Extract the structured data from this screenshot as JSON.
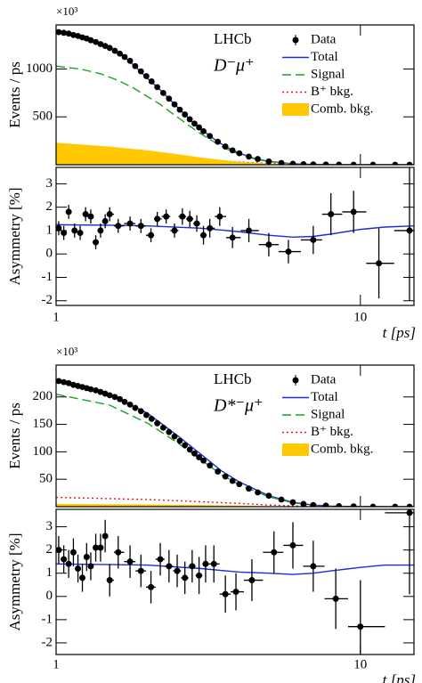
{
  "chart_data": [
    {
      "type": "line",
      "log_x": true,
      "ylabel": "Events / ps",
      "multiplier": "×10³",
      "experiment": "LHCb",
      "decay": "D⁻μ⁺",
      "legend": "upper right",
      "xlim": [
        1,
        15
      ],
      "xticks": [
        1,
        10
      ],
      "ylim": [
        0,
        1460
      ],
      "yticks": [
        500,
        1000
      ],
      "series": [
        {
          "name": "Data",
          "style": "points",
          "color": "#000000",
          "x": [
            1.02,
            1.06,
            1.1,
            1.14,
            1.18,
            1.22,
            1.26,
            1.3,
            1.35,
            1.4,
            1.45,
            1.5,
            1.56,
            1.62,
            1.68,
            1.75,
            1.82,
            1.9,
            1.98,
            2.06,
            2.15,
            2.25,
            2.35,
            2.45,
            2.55,
            2.65,
            2.75,
            2.85,
            2.95,
            3.05,
            3.2,
            3.4,
            3.6,
            3.8,
            4.0,
            4.3,
            4.6,
            5.0,
            5.5,
            6.0,
            6.5,
            7.0,
            7.7,
            8.5,
            9.5,
            11,
            13,
            14.5
          ],
          "values": [
            1385,
            1378,
            1370,
            1355,
            1345,
            1330,
            1318,
            1300,
            1282,
            1260,
            1240,
            1220,
            1190,
            1160,
            1125,
            1085,
            1030,
            975,
            925,
            870,
            810,
            750,
            690,
            630,
            575,
            525,
            475,
            430,
            390,
            350,
            300,
            240,
            190,
            150,
            120,
            85,
            60,
            35,
            18,
            10,
            6,
            3,
            2,
            1,
            0,
            0,
            0,
            0
          ]
        },
        {
          "name": "Total",
          "style": "solid",
          "color": "#1f2bd6",
          "x": [
            1,
            1.1,
            1.2,
            1.3,
            1.4,
            1.5,
            1.6,
            1.7,
            1.8,
            1.9,
            2,
            2.2,
            2.4,
            2.6,
            2.8,
            3,
            3.3,
            3.6,
            4,
            4.5,
            5,
            6,
            7,
            8,
            10,
            12,
            15
          ],
          "values": [
            1390,
            1370,
            1340,
            1300,
            1260,
            1220,
            1170,
            1110,
            1040,
            970,
            900,
            780,
            660,
            550,
            450,
            370,
            270,
            190,
            120,
            65,
            35,
            10,
            3,
            1,
            0,
            0,
            0
          ]
        },
        {
          "name": "Signal",
          "style": "dashed",
          "color": "#21a121",
          "x": [
            1,
            1.2,
            1.4,
            1.6,
            1.8,
            2,
            2.2,
            2.4,
            2.6,
            2.8,
            3,
            3.3,
            3.6,
            4,
            4.5,
            5,
            6,
            7,
            8,
            10,
            12,
            15
          ],
          "values": [
            1030,
            1000,
            950,
            880,
            800,
            710,
            630,
            540,
            460,
            385,
            320,
            240,
            170,
            110,
            60,
            32,
            9,
            3,
            1,
            0,
            0,
            0
          ]
        },
        {
          "name": "B⁺ bkg.",
          "style": "dotted",
          "color": "#e8161a",
          "x": [
            1,
            1.5,
            2,
            2.5,
            3,
            3.5,
            4,
            5,
            6,
            7,
            8,
            15
          ],
          "values": [
            125,
            110,
            95,
            75,
            55,
            40,
            28,
            12,
            5,
            2,
            0,
            0
          ]
        },
        {
          "name": "Comb. bkg.",
          "style": "band",
          "color": "#ffc800",
          "x": [
            1,
            1.5,
            2,
            2.5,
            3,
            3.5,
            4,
            5,
            6,
            7,
            8,
            15
          ],
          "values": [
            230,
            190,
            150,
            110,
            75,
            50,
            30,
            12,
            4,
            1,
            0,
            0
          ]
        }
      ]
    },
    {
      "type": "line",
      "log_x": true,
      "ylabel": "Asymmetry [%]",
      "xlabel": "t [ps]",
      "xlim": [
        1,
        15
      ],
      "xticks": [
        1,
        10
      ],
      "ylim": [
        -2.2,
        3.7
      ],
      "yticks": [
        -2,
        -1,
        0,
        1,
        2,
        3
      ],
      "series": [
        {
          "style": "points",
          "color": "#000000",
          "x": [
            1.02,
            1.06,
            1.1,
            1.15,
            1.2,
            1.25,
            1.3,
            1.35,
            1.4,
            1.45,
            1.5,
            1.6,
            1.75,
            1.9,
            2.05,
            2.15,
            2.3,
            2.45,
            2.6,
            2.75,
            2.9,
            3.05,
            3.2,
            3.45,
            3.8,
            4.3,
            5.0,
            5.8,
            7.0,
            8.0,
            9.5,
            11.5,
            14.5
          ],
          "values": [
            1.1,
            0.9,
            1.8,
            1.0,
            0.9,
            1.7,
            1.6,
            0.5,
            1.0,
            1.4,
            1.7,
            1.2,
            1.3,
            1.2,
            0.8,
            1.5,
            1.6,
            1.0,
            1.6,
            1.5,
            1.3,
            0.8,
            1.1,
            1.6,
            0.7,
            1.0,
            0.4,
            0.1,
            0.6,
            1.7,
            1.8,
            -0.4,
            1.0
          ],
          "errors": [
            0.3,
            0.3,
            0.3,
            0.3,
            0.3,
            0.3,
            0.3,
            0.3,
            0.3,
            0.3,
            0.3,
            0.3,
            0.3,
            0.3,
            0.3,
            0.3,
            0.3,
            0.3,
            0.35,
            0.35,
            0.35,
            0.4,
            0.4,
            0.4,
            0.45,
            0.5,
            0.5,
            0.5,
            0.6,
            0.9,
            0.9,
            1.5,
            3.0
          ]
        },
        {
          "style": "solid",
          "color": "#1f2bd6",
          "x": [
            1,
            1.5,
            2,
            3,
            4,
            5,
            6,
            7,
            8,
            10,
            12,
            15
          ],
          "values": [
            1.25,
            1.23,
            1.2,
            1.1,
            0.95,
            0.8,
            0.72,
            0.75,
            0.85,
            1.05,
            1.15,
            1.2
          ]
        }
      ]
    },
    {
      "type": "line",
      "log_x": true,
      "ylabel": "Events / ps",
      "multiplier": "×10³",
      "experiment": "LHCb",
      "decay": "D*⁻μ⁺",
      "legend": "upper right",
      "xlim": [
        1,
        15
      ],
      "xticks": [
        1,
        10
      ],
      "ylim": [
        0,
        258
      ],
      "yticks": [
        50,
        100,
        150,
        200
      ],
      "series": [
        {
          "name": "Data",
          "style": "points",
          "color": "#000000",
          "x": [
            1.02,
            1.06,
            1.1,
            1.14,
            1.18,
            1.22,
            1.26,
            1.3,
            1.35,
            1.4,
            1.45,
            1.5,
            1.56,
            1.62,
            1.68,
            1.75,
            1.82,
            1.9,
            1.98,
            2.06,
            2.15,
            2.25,
            2.35,
            2.45,
            2.55,
            2.65,
            2.75,
            2.85,
            2.95,
            3.05,
            3.2,
            3.4,
            3.6,
            3.8,
            4.0,
            4.3,
            4.6,
            5.0,
            5.5,
            6.0,
            6.5,
            7.0,
            7.7,
            8.5,
            9.5,
            11,
            13,
            14.5
          ],
          "values": [
            229,
            227,
            225,
            222,
            220,
            218,
            216,
            214,
            212,
            209,
            206,
            203,
            200,
            196,
            191,
            186,
            180,
            174,
            167,
            160,
            152,
            144,
            136,
            128,
            120,
            112,
            104,
            97,
            90,
            84,
            75,
            64,
            55,
            47,
            41,
            33,
            26,
            20,
            13,
            8,
            5,
            3,
            2,
            1,
            0.5,
            0,
            0,
            0
          ]
        },
        {
          "name": "Total",
          "style": "solid",
          "color": "#1f2bd6",
          "x": [
            1,
            1.5,
            2,
            2.5,
            3,
            3.5,
            4,
            5,
            6,
            7,
            8,
            10,
            15
          ],
          "values": [
            228,
            205,
            170,
            130,
            95,
            65,
            45,
            20,
            8,
            3,
            1,
            0,
            0
          ]
        },
        {
          "name": "Signal",
          "style": "dashed",
          "color": "#21a121",
          "x": [
            1,
            1.5,
            2,
            2.5,
            3,
            3.5,
            4,
            5,
            6,
            7,
            8,
            10,
            15
          ],
          "values": [
            205,
            185,
            152,
            117,
            85,
            58,
            40,
            18,
            7,
            2.5,
            1,
            0,
            0
          ]
        },
        {
          "name": "B⁺ bkg.",
          "style": "dotted",
          "color": "#e8161a",
          "x": [
            1,
            2,
            3,
            4,
            5,
            6,
            7,
            8,
            15
          ],
          "values": [
            17,
            13,
            9,
            6,
            3,
            1.5,
            0.7,
            0,
            0
          ]
        },
        {
          "name": "Comb. bkg.",
          "style": "band",
          "color": "#ffc800",
          "x": [
            1,
            2,
            3,
            4,
            5,
            6,
            8,
            15
          ],
          "values": [
            5,
            4,
            3,
            2,
            1,
            0.5,
            0,
            0
          ]
        }
      ]
    },
    {
      "type": "line",
      "log_x": true,
      "ylabel": "Asymmetry [%]",
      "xlabel": "t [ps]",
      "xlim": [
        1,
        15
      ],
      "xticks": [
        1,
        10
      ],
      "ylim": [
        -2.5,
        3.75
      ],
      "yticks": [
        -2,
        -1,
        0,
        1,
        2,
        3
      ],
      "series": [
        {
          "style": "points",
          "color": "#000000",
          "x": [
            1.02,
            1.06,
            1.1,
            1.14,
            1.18,
            1.22,
            1.26,
            1.3,
            1.35,
            1.4,
            1.45,
            1.5,
            1.6,
            1.75,
            1.9,
            2.05,
            2.2,
            2.35,
            2.5,
            2.65,
            2.8,
            2.95,
            3.1,
            3.3,
            3.6,
            3.9,
            4.4,
            5.2,
            6.0,
            7.0,
            8.3,
            10.0,
            14.5
          ],
          "values": [
            2.0,
            1.6,
            1.4,
            1.9,
            1.2,
            0.8,
            1.7,
            1.3,
            2.1,
            2.1,
            2.6,
            0.7,
            1.9,
            1.5,
            1.1,
            0.4,
            1.6,
            1.3,
            1.1,
            0.8,
            1.3,
            0.9,
            1.4,
            1.4,
            0.1,
            0.2,
            0.7,
            1.9,
            2.2,
            1.3,
            -0.1,
            -1.3,
            3.6
          ],
          "errors": [
            0.6,
            0.6,
            0.6,
            0.6,
            0.6,
            0.6,
            0.6,
            0.6,
            0.6,
            0.6,
            0.7,
            0.7,
            0.7,
            0.7,
            0.7,
            0.7,
            0.7,
            0.7,
            0.7,
            0.7,
            0.7,
            0.8,
            0.8,
            0.8,
            0.8,
            0.8,
            0.9,
            0.9,
            1.0,
            1.1,
            1.3,
            2.0,
            3.5
          ]
        },
        {
          "style": "solid",
          "color": "#1f2bd6",
          "x": [
            1,
            2,
            3,
            4,
            5,
            6,
            7,
            8,
            10,
            12,
            15
          ],
          "values": [
            1.4,
            1.35,
            1.2,
            1.05,
            1.0,
            0.95,
            1.0,
            1.1,
            1.25,
            1.35,
            1.35
          ]
        }
      ]
    }
  ]
}
